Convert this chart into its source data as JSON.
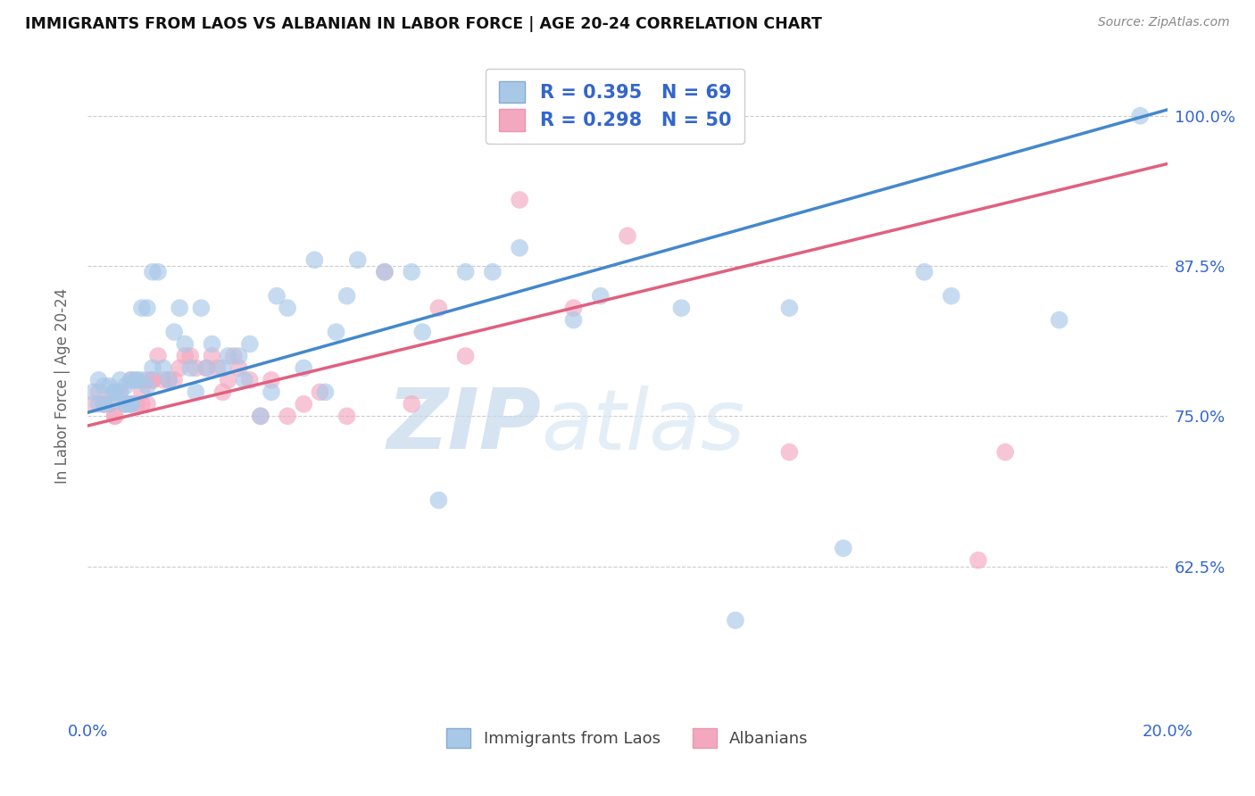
{
  "title": "IMMIGRANTS FROM LAOS VS ALBANIAN IN LABOR FORCE | AGE 20-24 CORRELATION CHART",
  "source": "Source: ZipAtlas.com",
  "ylabel": "In Labor Force | Age 20-24",
  "xlim": [
    0.0,
    0.2
  ],
  "ylim": [
    0.5,
    1.05
  ],
  "yticks": [
    0.625,
    0.75,
    0.875,
    1.0
  ],
  "ytick_labels": [
    "62.5%",
    "75.0%",
    "87.5%",
    "100.0%"
  ],
  "xticks": [
    0.0,
    0.05,
    0.1,
    0.15,
    0.2
  ],
  "xtick_labels": [
    "0.0%",
    "",
    "",
    "",
    "20.0%"
  ],
  "r_laos": 0.395,
  "n_laos": 69,
  "r_albanian": 0.298,
  "n_albanian": 50,
  "color_laos": "#A8C8E8",
  "color_albanian": "#F4A8C0",
  "line_color_laos": "#4488CC",
  "line_color_albanian": "#E06080",
  "legend_labels": [
    "Immigrants from Laos",
    "Albanians"
  ],
  "watermark_zip": "ZIP",
  "watermark_atlas": "atlas",
  "laos_x": [
    0.001,
    0.002,
    0.002,
    0.003,
    0.003,
    0.004,
    0.004,
    0.005,
    0.005,
    0.005,
    0.006,
    0.006,
    0.007,
    0.007,
    0.007,
    0.008,
    0.008,
    0.008,
    0.009,
    0.009,
    0.01,
    0.01,
    0.011,
    0.011,
    0.012,
    0.012,
    0.013,
    0.014,
    0.015,
    0.016,
    0.017,
    0.018,
    0.019,
    0.02,
    0.021,
    0.022,
    0.023,
    0.025,
    0.026,
    0.028,
    0.029,
    0.03,
    0.032,
    0.034,
    0.035,
    0.037,
    0.04,
    0.042,
    0.044,
    0.046,
    0.048,
    0.05,
    0.055,
    0.06,
    0.062,
    0.065,
    0.07,
    0.075,
    0.08,
    0.09,
    0.095,
    0.11,
    0.12,
    0.13,
    0.14,
    0.155,
    0.16,
    0.18,
    0.195
  ],
  "laos_y": [
    0.77,
    0.78,
    0.76,
    0.775,
    0.76,
    0.775,
    0.76,
    0.77,
    0.77,
    0.77,
    0.78,
    0.77,
    0.775,
    0.76,
    0.76,
    0.78,
    0.76,
    0.76,
    0.78,
    0.78,
    0.84,
    0.78,
    0.775,
    0.84,
    0.87,
    0.79,
    0.87,
    0.79,
    0.78,
    0.82,
    0.84,
    0.81,
    0.79,
    0.77,
    0.84,
    0.79,
    0.81,
    0.79,
    0.8,
    0.8,
    0.78,
    0.81,
    0.75,
    0.77,
    0.85,
    0.84,
    0.79,
    0.88,
    0.77,
    0.82,
    0.85,
    0.88,
    0.87,
    0.87,
    0.82,
    0.68,
    0.87,
    0.87,
    0.89,
    0.83,
    0.85,
    0.84,
    0.58,
    0.84,
    0.64,
    0.87,
    0.85,
    0.83,
    1.0
  ],
  "albanian_x": [
    0.001,
    0.002,
    0.003,
    0.003,
    0.004,
    0.005,
    0.005,
    0.006,
    0.007,
    0.008,
    0.008,
    0.009,
    0.01,
    0.01,
    0.011,
    0.011,
    0.012,
    0.012,
    0.013,
    0.014,
    0.015,
    0.016,
    0.017,
    0.018,
    0.019,
    0.02,
    0.022,
    0.023,
    0.024,
    0.025,
    0.026,
    0.027,
    0.028,
    0.03,
    0.032,
    0.034,
    0.037,
    0.04,
    0.043,
    0.048,
    0.055,
    0.06,
    0.065,
    0.07,
    0.08,
    0.09,
    0.1,
    0.13,
    0.165,
    0.17
  ],
  "albanian_y": [
    0.76,
    0.77,
    0.76,
    0.76,
    0.76,
    0.75,
    0.75,
    0.77,
    0.76,
    0.78,
    0.76,
    0.76,
    0.77,
    0.76,
    0.78,
    0.76,
    0.78,
    0.78,
    0.8,
    0.78,
    0.78,
    0.78,
    0.79,
    0.8,
    0.8,
    0.79,
    0.79,
    0.8,
    0.79,
    0.77,
    0.78,
    0.8,
    0.79,
    0.78,
    0.75,
    0.78,
    0.75,
    0.76,
    0.77,
    0.75,
    0.87,
    0.76,
    0.84,
    0.8,
    0.93,
    0.84,
    0.9,
    0.72,
    0.63,
    0.72
  ],
  "trend_laos_x0": 0.0,
  "trend_laos_y0": 0.753,
  "trend_laos_x1": 0.2,
  "trend_laos_y1": 1.005,
  "trend_alb_x0": 0.0,
  "trend_alb_y0": 0.742,
  "trend_alb_x1": 0.2,
  "trend_alb_y1": 0.96
}
